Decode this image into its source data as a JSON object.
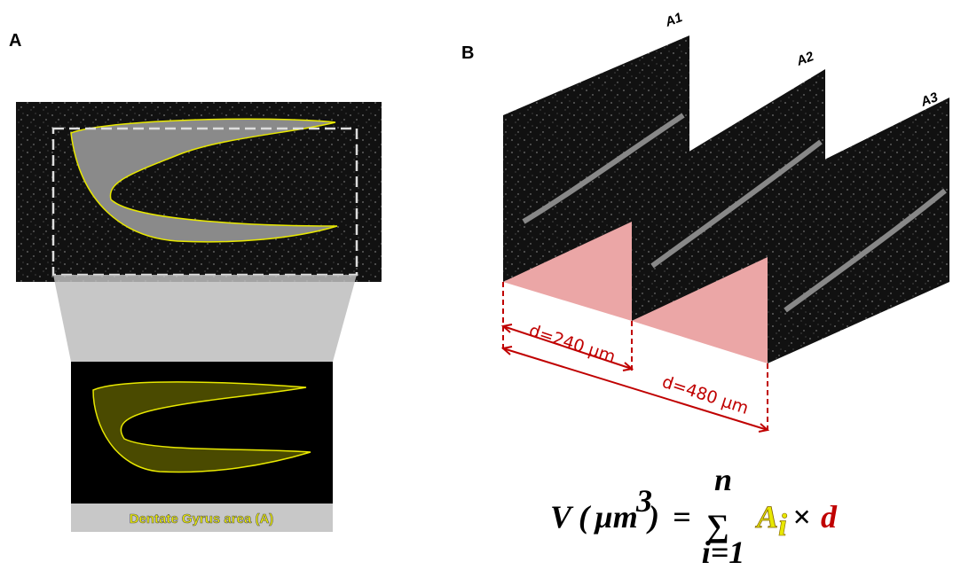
{
  "panel_a": {
    "label": "A",
    "caption": "Dentate Gyrus area (A)"
  },
  "panel_b": {
    "label": "B",
    "slices": [
      "A1",
      "A2",
      "A3"
    ],
    "distances": [
      "d=240 µm",
      "d=480 µm"
    ],
    "formula": {
      "volume": "V",
      "unit_open": "(",
      "unit": "µm",
      "exponent": "3",
      "unit_close": ")",
      "equals": "=",
      "sum": "∑",
      "sum_top": "n",
      "sum_bottom": "i=1",
      "area": "A",
      "area_index": "i",
      "times": "×",
      "distance": "d"
    }
  }
}
